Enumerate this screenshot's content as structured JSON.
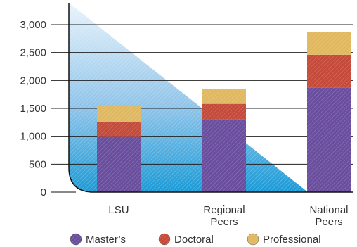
{
  "chart_data": {
    "type": "bar",
    "stacked": true,
    "categories": [
      [
        "LSU"
      ],
      [
        "Regional",
        "Peers"
      ],
      [
        "National",
        "Peers"
      ]
    ],
    "series": [
      {
        "name": "Master’s",
        "values": [
          1000,
          1300,
          1870
        ],
        "color": "#6a4e9e"
      },
      {
        "name": "Doctoral",
        "values": [
          260,
          280,
          590
        ],
        "color": "#c44a3a"
      },
      {
        "name": "Professional",
        "values": [
          280,
          260,
          410
        ],
        "color": "#e0b860"
      }
    ],
    "ylim": [
      0,
      3000
    ],
    "yticks": [
      "0",
      "500",
      "1,000",
      "1,500",
      "2,000",
      "2,500",
      "3,000"
    ],
    "ytick_values": [
      0,
      500,
      1000,
      1500,
      2000,
      2500,
      3000
    ],
    "grid": true,
    "legend_position": "bottom"
  }
}
